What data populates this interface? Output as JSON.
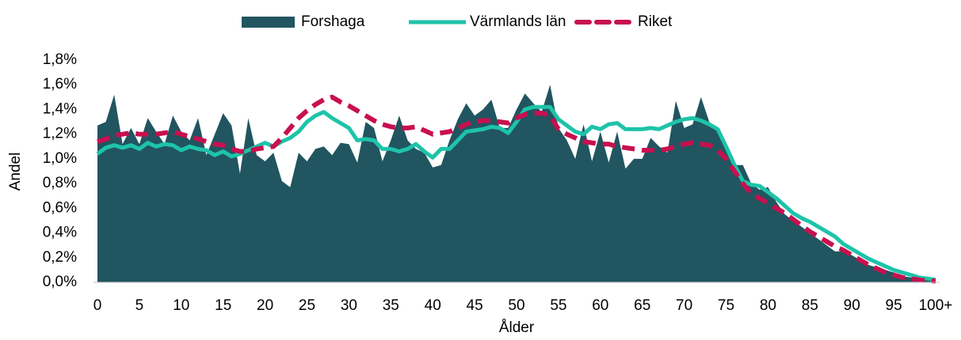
{
  "chart_data": {
    "type": "line",
    "x_label": "Ålder",
    "y_label": "Andel",
    "categories": [
      "0",
      null,
      null,
      null,
      null,
      "5",
      null,
      null,
      null,
      null,
      "10",
      null,
      null,
      null,
      null,
      "15",
      null,
      null,
      null,
      null,
      "20",
      null,
      null,
      null,
      null,
      "25",
      null,
      null,
      null,
      null,
      "30",
      null,
      null,
      null,
      null,
      "35",
      null,
      null,
      null,
      null,
      "40",
      null,
      null,
      null,
      null,
      "45",
      null,
      null,
      null,
      null,
      "50",
      null,
      null,
      null,
      null,
      "55",
      null,
      null,
      null,
      null,
      "60",
      null,
      null,
      null,
      null,
      "65",
      null,
      null,
      null,
      null,
      "70",
      null,
      null,
      null,
      null,
      "75",
      null,
      null,
      null,
      null,
      "80",
      null,
      null,
      null,
      null,
      "85",
      null,
      null,
      null,
      null,
      "90",
      null,
      null,
      null,
      null,
      "95",
      null,
      null,
      null,
      null,
      "100+"
    ],
    "ylim": [
      0,
      1.8
    ],
    "yticks": [
      {
        "value": 0,
        "label": "0,0%"
      },
      {
        "value": 0.2,
        "label": "0,2%"
      },
      {
        "value": 0.4,
        "label": "0,4%"
      },
      {
        "value": 0.6,
        "label": "0,6%"
      },
      {
        "value": 0.8,
        "label": "0,8%"
      },
      {
        "value": 1.0,
        "label": "1,0%"
      },
      {
        "value": 1.2,
        "label": "1,2%"
      },
      {
        "value": 1.4,
        "label": "1,4%"
      },
      {
        "value": 1.6,
        "label": "1,6%"
      },
      {
        "value": 1.8,
        "label": "1,8%"
      }
    ],
    "grid": false,
    "legend": "top",
    "series": [
      {
        "name": "Forshaga",
        "color": "#215560",
        "fill": true,
        "dash": false,
        "values": [
          1.27,
          1.3,
          1.52,
          1.12,
          1.25,
          1.12,
          1.33,
          1.22,
          1.12,
          1.35,
          1.22,
          1.15,
          1.33,
          1.03,
          1.2,
          1.37,
          1.27,
          0.88,
          1.33,
          1.03,
          0.98,
          1.05,
          0.82,
          0.77,
          1.05,
          0.98,
          1.08,
          1.1,
          1.03,
          1.13,
          1.12,
          0.97,
          1.3,
          1.25,
          0.98,
          1.15,
          1.35,
          1.15,
          1.08,
          1.05,
          0.93,
          0.95,
          1.15,
          1.32,
          1.45,
          1.35,
          1.4,
          1.48,
          1.25,
          1.25,
          1.4,
          1.53,
          1.45,
          1.38,
          1.6,
          1.25,
          1.15,
          1.0,
          1.28,
          0.98,
          1.22,
          0.97,
          1.22,
          0.92,
          1.0,
          1.0,
          1.17,
          1.1,
          1.05,
          1.47,
          1.25,
          1.28,
          1.5,
          1.3,
          1.22,
          1.07,
          0.95,
          0.95,
          0.8,
          0.75,
          0.77,
          0.65,
          0.55,
          0.5,
          0.45,
          0.4,
          0.35,
          0.3,
          0.25,
          0.25,
          0.22,
          0.18,
          0.14,
          0.12,
          0.1,
          0.08,
          0.05,
          0.04,
          0.03,
          0.02,
          0.02
        ]
      },
      {
        "name": "Värmlands län",
        "color": "#1ec3a9",
        "fill": false,
        "dash": false,
        "values": [
          1.04,
          1.09,
          1.11,
          1.09,
          1.11,
          1.08,
          1.13,
          1.1,
          1.12,
          1.11,
          1.07,
          1.1,
          1.08,
          1.07,
          1.03,
          1.06,
          1.02,
          1.04,
          1.07,
          1.1,
          1.13,
          1.1,
          1.14,
          1.17,
          1.22,
          1.3,
          1.35,
          1.38,
          1.33,
          1.29,
          1.25,
          1.15,
          1.16,
          1.15,
          1.08,
          1.08,
          1.06,
          1.08,
          1.12,
          1.06,
          1.01,
          1.08,
          1.08,
          1.15,
          1.22,
          1.23,
          1.24,
          1.26,
          1.25,
          1.21,
          1.3,
          1.4,
          1.42,
          1.42,
          1.42,
          1.32,
          1.27,
          1.22,
          1.2,
          1.26,
          1.24,
          1.28,
          1.29,
          1.24,
          1.24,
          1.24,
          1.25,
          1.24,
          1.27,
          1.3,
          1.32,
          1.33,
          1.31,
          1.28,
          1.24,
          1.1,
          0.95,
          0.82,
          0.79,
          0.78,
          0.73,
          0.68,
          0.62,
          0.56,
          0.52,
          0.49,
          0.45,
          0.41,
          0.37,
          0.31,
          0.27,
          0.23,
          0.19,
          0.16,
          0.13,
          0.1,
          0.08,
          0.06,
          0.04,
          0.03,
          0.02
        ]
      },
      {
        "name": "Riket",
        "color": "#c8104f",
        "fill": false,
        "dash": true,
        "values": [
          1.14,
          1.16,
          1.19,
          1.2,
          1.21,
          1.2,
          1.2,
          1.2,
          1.21,
          1.22,
          1.2,
          1.18,
          1.16,
          1.14,
          1.12,
          1.11,
          1.08,
          1.06,
          1.06,
          1.08,
          1.09,
          1.1,
          1.17,
          1.25,
          1.33,
          1.39,
          1.44,
          1.48,
          1.5,
          1.46,
          1.43,
          1.39,
          1.35,
          1.31,
          1.28,
          1.26,
          1.25,
          1.25,
          1.26,
          1.23,
          1.2,
          1.21,
          1.22,
          1.25,
          1.28,
          1.3,
          1.31,
          1.31,
          1.3,
          1.29,
          1.33,
          1.36,
          1.37,
          1.37,
          1.35,
          1.24,
          1.2,
          1.17,
          1.14,
          1.13,
          1.12,
          1.12,
          1.1,
          1.09,
          1.08,
          1.07,
          1.07,
          1.07,
          1.08,
          1.1,
          1.12,
          1.13,
          1.12,
          1.11,
          1.07,
          1.0,
          0.9,
          0.8,
          0.72,
          0.68,
          0.64,
          0.6,
          0.56,
          0.51,
          0.46,
          0.41,
          0.37,
          0.33,
          0.29,
          0.26,
          0.22,
          0.18,
          0.14,
          0.11,
          0.08,
          0.06,
          0.04,
          0.03,
          0.02,
          0.01,
          0.01
        ]
      }
    ]
  }
}
